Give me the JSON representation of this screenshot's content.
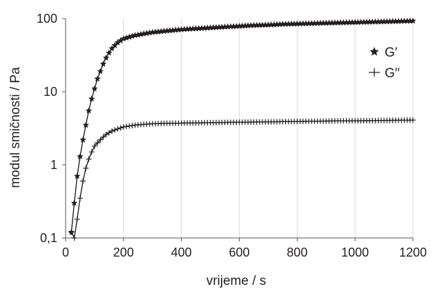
{
  "chart_data": {
    "type": "line",
    "xlabel": "vrijeme / s",
    "ylabel": "modul smičnosti / Pa",
    "xlim": [
      0,
      1200
    ],
    "ylim": [
      0.1,
      100
    ],
    "yscale": "log",
    "grid": "vertical",
    "legend_position": "right",
    "x_ticks": [
      0,
      200,
      400,
      600,
      800,
      1000,
      1200
    ],
    "x_tick_labels": [
      "0",
      "200",
      "400",
      "600",
      "800",
      "1000",
      "1200"
    ],
    "y_ticks": [
      0.1,
      1,
      10,
      100
    ],
    "y_tick_labels": [
      "0,1",
      "1",
      "10",
      "100"
    ],
    "series": [
      {
        "name": "G′",
        "marker": "star",
        "color": "#231f20",
        "x": [
          20,
          30,
          40,
          50,
          60,
          70,
          80,
          90,
          100,
          110,
          120,
          130,
          140,
          150,
          160,
          170,
          180,
          190,
          200,
          220,
          240,
          260,
          280,
          300,
          350,
          400,
          450,
          500,
          550,
          600,
          650,
          700,
          750,
          800,
          850,
          900,
          950,
          1000,
          1050,
          1100,
          1150,
          1200
        ],
        "values": [
          0.12,
          0.3,
          0.7,
          1.3,
          2.2,
          3.5,
          5.5,
          8,
          11,
          15,
          19,
          24,
          29,
          34,
          39,
          43,
          47,
          50,
          53,
          56,
          59,
          61,
          63,
          65,
          68,
          71,
          73,
          75,
          77,
          79,
          81,
          82,
          84,
          85,
          86,
          87,
          88,
          89,
          90,
          91,
          92,
          93
        ]
      },
      {
        "name": "G′′",
        "marker": "plus",
        "color": "#231f20",
        "x": [
          20,
          30,
          40,
          50,
          60,
          70,
          80,
          90,
          100,
          110,
          120,
          130,
          140,
          150,
          160,
          170,
          180,
          190,
          200,
          220,
          240,
          260,
          280,
          300,
          350,
          400,
          450,
          500,
          550,
          600,
          650,
          700,
          750,
          800,
          850,
          900,
          950,
          1000,
          1050,
          1100,
          1150,
          1200
        ],
        "values": [
          0.12,
          0.1,
          0.18,
          0.35,
          0.6,
          0.9,
          1.2,
          1.5,
          1.8,
          2.0,
          2.2,
          2.4,
          2.6,
          2.75,
          2.9,
          3.0,
          3.1,
          3.2,
          3.3,
          3.4,
          3.5,
          3.55,
          3.6,
          3.65,
          3.7,
          3.72,
          3.75,
          3.78,
          3.8,
          3.82,
          3.85,
          3.87,
          3.9,
          3.92,
          3.95,
          3.97,
          4.0,
          4.0,
          4.02,
          4.05,
          4.07,
          4.1
        ]
      }
    ]
  }
}
